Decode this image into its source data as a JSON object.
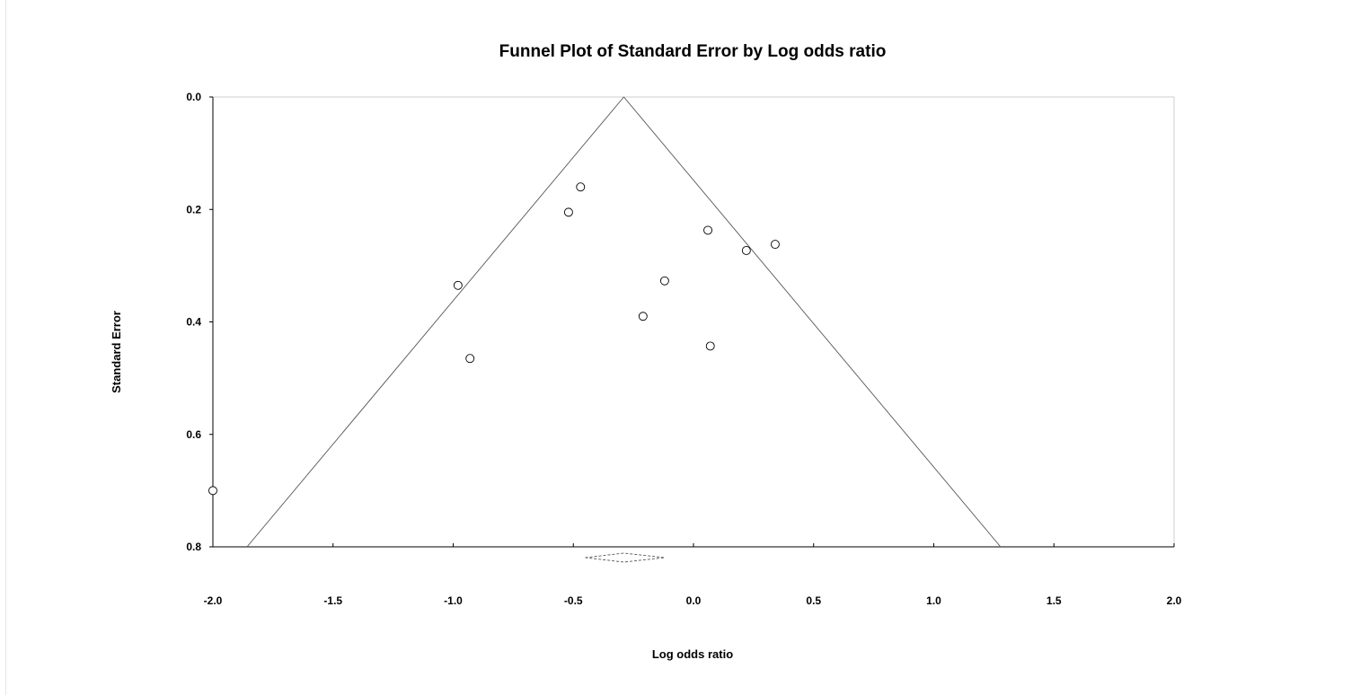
{
  "chart_data": {
    "type": "scatter",
    "title": "Funnel Plot of Standard Error by Log odds ratio",
    "xlabel": "Log odds ratio",
    "ylabel": "Standard Error",
    "xlim": [
      -2.0,
      2.0
    ],
    "ylim": [
      0.0,
      0.8
    ],
    "y_inverted": true,
    "x_ticks": [
      "-2.0",
      "-1.5",
      "-1.0",
      "-0.5",
      "0.0",
      "0.5",
      "1.0",
      "1.5",
      "2.0"
    ],
    "y_ticks": [
      "0.0",
      "0.2",
      "0.4",
      "0.6",
      "0.8"
    ],
    "grid": false,
    "legend": "none",
    "pooled_estimate": -0.29,
    "pooled_ci": [
      -0.45,
      -0.12
    ],
    "funnel_z": 1.96,
    "points": [
      {
        "x": -2.0,
        "y": 0.7
      },
      {
        "x": -0.98,
        "y": 0.335
      },
      {
        "x": -0.93,
        "y": 0.465
      },
      {
        "x": -0.52,
        "y": 0.205
      },
      {
        "x": -0.47,
        "y": 0.16
      },
      {
        "x": -0.21,
        "y": 0.39
      },
      {
        "x": -0.12,
        "y": 0.327
      },
      {
        "x": 0.06,
        "y": 0.237
      },
      {
        "x": 0.07,
        "y": 0.443
      },
      {
        "x": 0.22,
        "y": 0.273
      },
      {
        "x": 0.34,
        "y": 0.262
      }
    ],
    "marker_color": "#000000",
    "line_color": "#555555"
  }
}
